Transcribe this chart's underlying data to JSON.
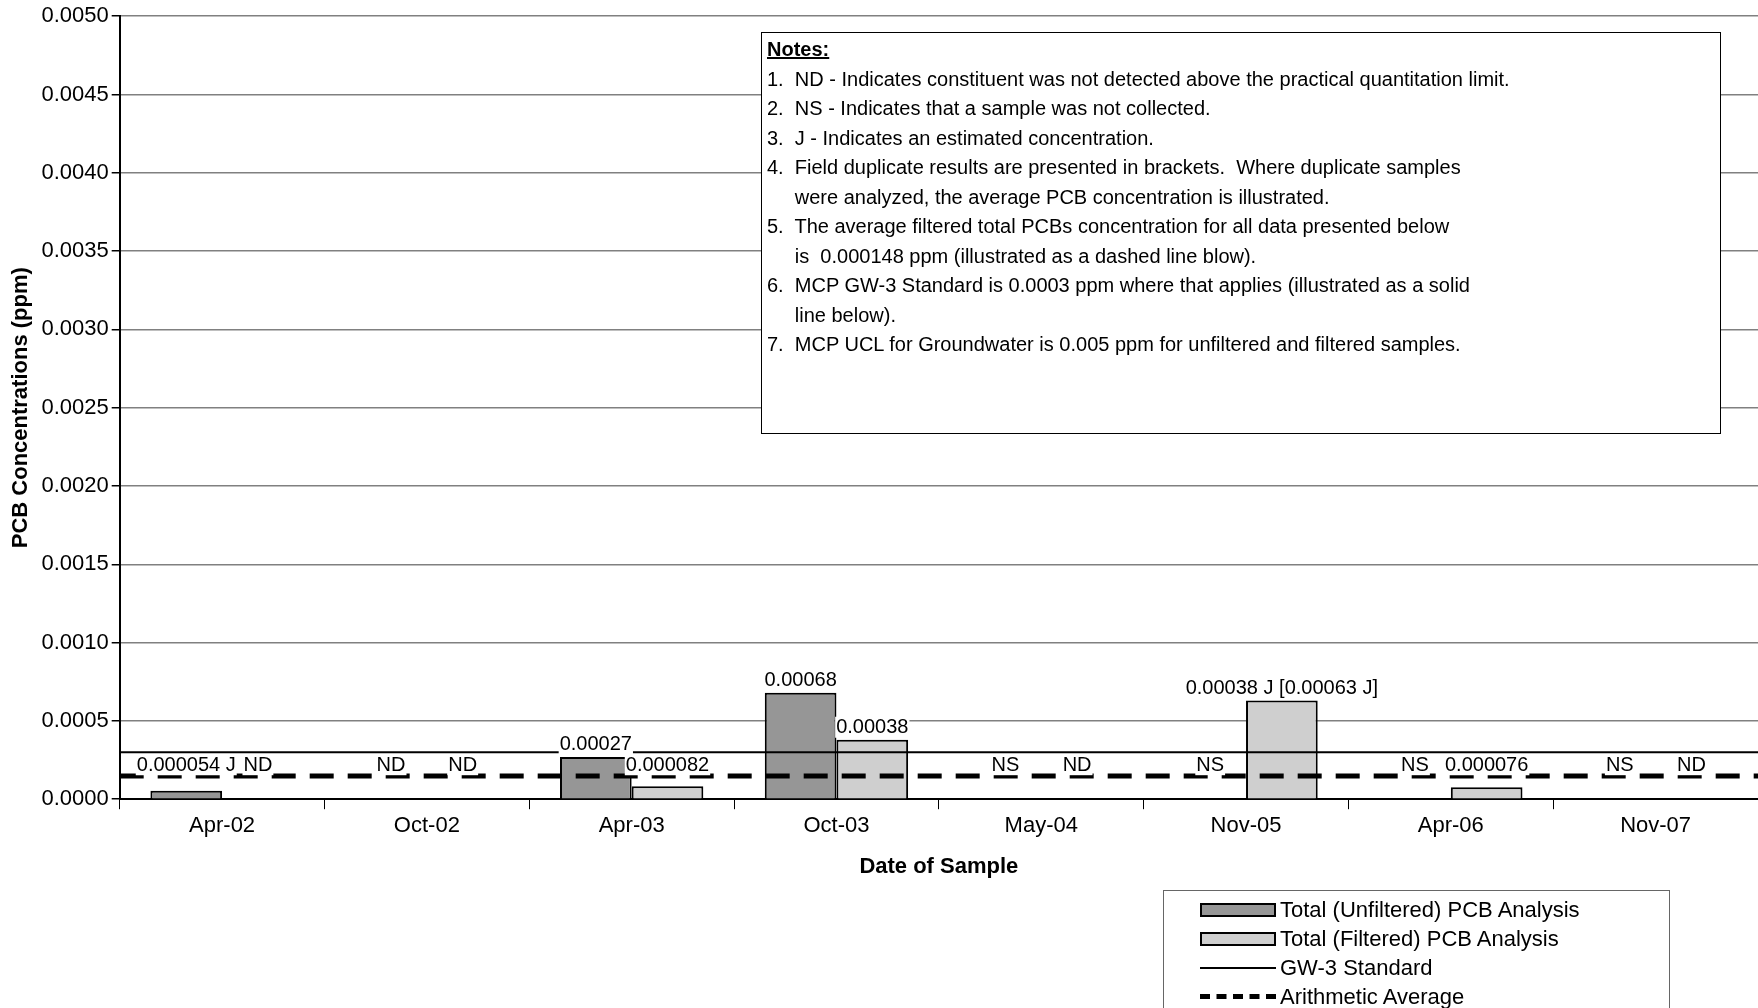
{
  "chart_data": {
    "type": "bar",
    "xlabel": "Date of Sample",
    "ylabel": "PCB Concentrations (ppm)",
    "categories": [
      "Apr-02",
      "Oct-02",
      "Apr-03",
      "Oct-03",
      "May-04",
      "Nov-05",
      "Apr-06",
      "Nov-07"
    ],
    "series": [
      {
        "name": "Total (Unfiltered) PCB Analysis",
        "color": "#969696",
        "values": [
          5.4e-05,
          null,
          0.00027,
          0.00068,
          null,
          null,
          null,
          null
        ],
        "value_labels": [
          "0.000054 J",
          "ND",
          "0.00027",
          "0.00068",
          "NS",
          "NS",
          "NS",
          "NS"
        ]
      },
      {
        "name": "Total (Filtered) PCB Analysis",
        "color": "#cfcfcf",
        "values": [
          null,
          null,
          8.2e-05,
          0.00038,
          null,
          0.00063,
          7.6e-05,
          null
        ],
        "value_labels": [
          "ND",
          "ND",
          "0.000082",
          "0.00038",
          "ND",
          "0.00038 J [0.00063 J]",
          "0.000076",
          "ND"
        ]
      }
    ],
    "ref_lines": [
      {
        "axis": "y",
        "value": 0.0003,
        "label": "GW-3 Standard",
        "color": "#000000",
        "line_style": "solid"
      },
      {
        "axis": "y",
        "value": 0.000148,
        "label": "Arithmetic Average",
        "color": "#000000",
        "line_style": "dashed"
      }
    ],
    "ylim": [
      0,
      0.005
    ],
    "yticks": [
      {
        "value": 0,
        "label": "0.0000"
      },
      {
        "value": 0.0005,
        "label": "0.0005"
      },
      {
        "value": 0.001,
        "label": "0.0010"
      },
      {
        "value": 0.0015,
        "label": "0.0015"
      },
      {
        "value": 0.002,
        "label": "0.0020"
      },
      {
        "value": 0.0025,
        "label": "0.0025"
      },
      {
        "value": 0.003,
        "label": "0.0030"
      },
      {
        "value": 0.0035,
        "label": "0.0035"
      },
      {
        "value": 0.004,
        "label": "0.0040"
      },
      {
        "value": 0.0045,
        "label": "0.0045"
      },
      {
        "value": 0.005,
        "label": "0.0050"
      }
    ],
    "grid": "y",
    "legend": "bottom right",
    "annotations": [
      "Notes:",
      "1.  ND - Indicates constituent was not detected above the practical quantitation limit.",
      "2.  NS - Indicates that a sample was not collected.",
      "3.  J - Indicates an estimated concentration.",
      "4.  Field duplicate results are presented in brackets.  Where duplicate samples\n     were analyzed, the average PCB concentration is illustrated.",
      "5.  The average filtered total PCBs concentration for all data presented below\n     is  0.000148 ppm (illustrated as a dashed line blow).",
      "6.  MCP GW-3 Standard is 0.0003 ppm where that applies (illustrated as a solid\n     line below).",
      "7.  MCP UCL for Groundwater is 0.005 ppm for unfiltered and filtered samples."
    ]
  }
}
